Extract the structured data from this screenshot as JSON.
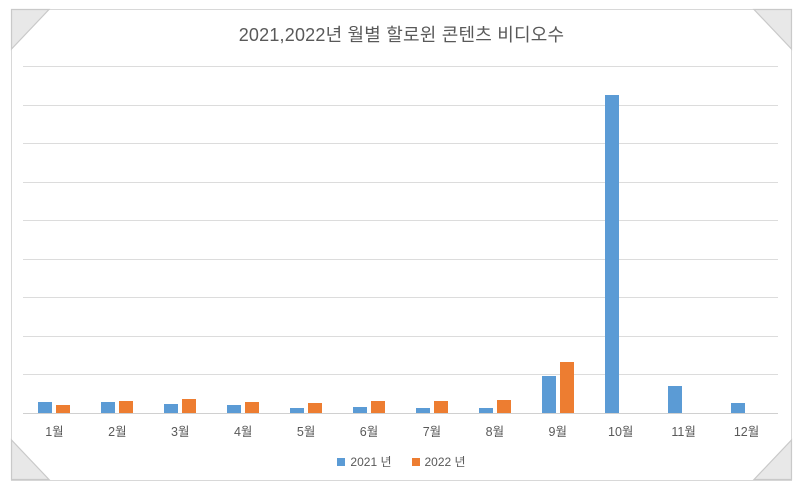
{
  "window": {
    "background_color": "#ffffff",
    "frame_border_color": "#d8d8d8",
    "corner_decoration_color": "#e8e8e8",
    "corner_decoration_stroke": "#c9c9c9",
    "corner_decorations": [
      "top-left",
      "top-right",
      "bottom-left",
      "bottom-right"
    ]
  },
  "chart_data": {
    "type": "bar",
    "title": "2021,2022년 월별 할로윈 콘텐츠 비디오수",
    "title_color": "#595959",
    "categories": [
      "1월",
      "2월",
      "3월",
      "4월",
      "5월",
      "6월",
      "7월",
      "8월",
      "9월",
      "10월",
      "11월",
      "12월"
    ],
    "series": [
      {
        "name": "2021 년",
        "color": "#5B9BD5",
        "values": [
          14,
          14,
          12,
          11,
          7,
          8,
          6,
          7,
          48,
          412,
          35,
          13
        ]
      },
      {
        "name": "2022 년",
        "color": "#ED7D31",
        "values": [
          10,
          16,
          18,
          14,
          13,
          15,
          15,
          17,
          66,
          0,
          0,
          0
        ]
      }
    ],
    "xlabel": "",
    "ylabel": "",
    "ylim": [
      0,
      450
    ],
    "gridline_step": 50,
    "grid": true,
    "gridline_color": "#dcdcdc",
    "axis_line_color": "#d0d0d0",
    "y_axis_tick_labels_visible": false,
    "legend_position": "bottom",
    "axis_label_color": "#595959",
    "note_values_estimated_from_gridlines": true
  }
}
